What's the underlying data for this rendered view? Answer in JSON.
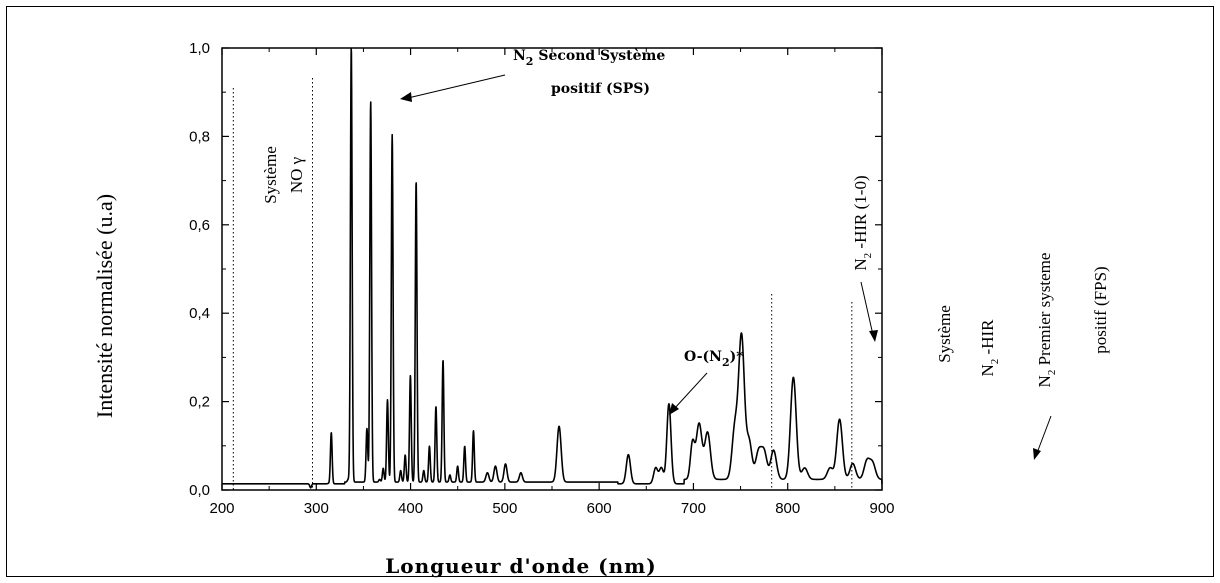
{
  "chart_data": {
    "type": "line",
    "xlabel": "Longueur d'onde (nm)",
    "ylabel": "Intensité normalisée (u.a)",
    "xlim": [
      200,
      900
    ],
    "ylim": [
      0,
      1.0
    ],
    "x_ticks": [
      200,
      300,
      400,
      500,
      600,
      700,
      800,
      900
    ],
    "y_ticks": [
      "0,0",
      "0,2",
      "0,4",
      "0,6",
      "0,8",
      "1,0"
    ],
    "grid": false,
    "baseline": 0.014,
    "series": [
      {
        "peaks": [
          {
            "x": 294,
            "y": 0.005
          },
          {
            "x": 313,
            "y": 0.015
          },
          {
            "x": 315.9,
            "y": 0.13
          },
          {
            "x": 333.9,
            "y": 0.02
          },
          {
            "x": 337.1,
            "y": 1.0
          },
          {
            "x": 353.7,
            "y": 0.135
          },
          {
            "x": 357.7,
            "y": 0.875
          },
          {
            "x": 367.2,
            "y": 0.02
          },
          {
            "x": 371,
            "y": 0.045
          },
          {
            "x": 375.5,
            "y": 0.2
          },
          {
            "x": 380.5,
            "y": 0.8
          },
          {
            "x": 389.5,
            "y": 0.04
          },
          {
            "x": 394.3,
            "y": 0.075
          },
          {
            "x": 399.8,
            "y": 0.255
          },
          {
            "x": 405.9,
            "y": 0.695
          },
          {
            "x": 414,
            "y": 0.04
          },
          {
            "x": 420,
            "y": 0.095
          },
          {
            "x": 426.9,
            "y": 0.185
          },
          {
            "x": 434.4,
            "y": 0.29
          },
          {
            "x": 441.7,
            "y": 0.03
          },
          {
            "x": 449.9,
            "y": 0.05
          },
          {
            "x": 457.4,
            "y": 0.095
          },
          {
            "x": 466.7,
            "y": 0.13
          },
          {
            "x": 481.5,
            "y": 0.035
          },
          {
            "x": 490,
            "y": 0.05
          },
          {
            "x": 500.7,
            "y": 0.055
          },
          {
            "x": 517,
            "y": 0.035
          },
          {
            "x": 557.5,
            "y": 0.14
          },
          {
            "x": 631,
            "y": 0.08
          },
          {
            "x": 660,
            "y": 0.05
          },
          {
            "x": 666,
            "y": 0.05
          },
          {
            "x": 674,
            "y": 0.195
          },
          {
            "x": 699,
            "y": 0.095
          },
          {
            "x": 706,
            "y": 0.14
          },
          {
            "x": 715,
            "y": 0.12
          },
          {
            "x": 744,
            "y": 0.13
          },
          {
            "x": 751,
            "y": 0.335
          },
          {
            "x": 759,
            "y": 0.1
          },
          {
            "x": 769,
            "y": 0.075
          },
          {
            "x": 775,
            "y": 0.075
          },
          {
            "x": 785,
            "y": 0.08
          },
          {
            "x": 806,
            "y": 0.245
          },
          {
            "x": 818,
            "y": 0.04
          },
          {
            "x": 845,
            "y": 0.04
          },
          {
            "x": 855,
            "y": 0.15
          },
          {
            "x": 869,
            "y": 0.05
          },
          {
            "x": 884,
            "y": 0.055
          },
          {
            "x": 890,
            "y": 0.05
          }
        ]
      }
    ],
    "region_dividers_x": [
      212,
      296,
      783,
      868
    ],
    "annotations": {
      "sps_line1": "N",
      "sps_sub": "2",
      "sps_line1_rest": " Second Système",
      "sps_line2": "positif  (SPS)",
      "no_line1": "Système",
      "no_line2": "NO γ",
      "o_n2_a": "O-(N",
      "o_n2_sub": "2",
      "o_n2_b": ")*",
      "hir10_a": "N",
      "hir10_sub": "2",
      "hir10_b": " -HIR (1-0)",
      "sys_right": "Système",
      "hir_a": "N",
      "hir_sub": "2",
      "hir_b": " -HIR",
      "fps_a": "N",
      "fps_sub": "2",
      "fps_b": "  Premier systeme",
      "fps_line2": "positif (FPS)"
    }
  }
}
